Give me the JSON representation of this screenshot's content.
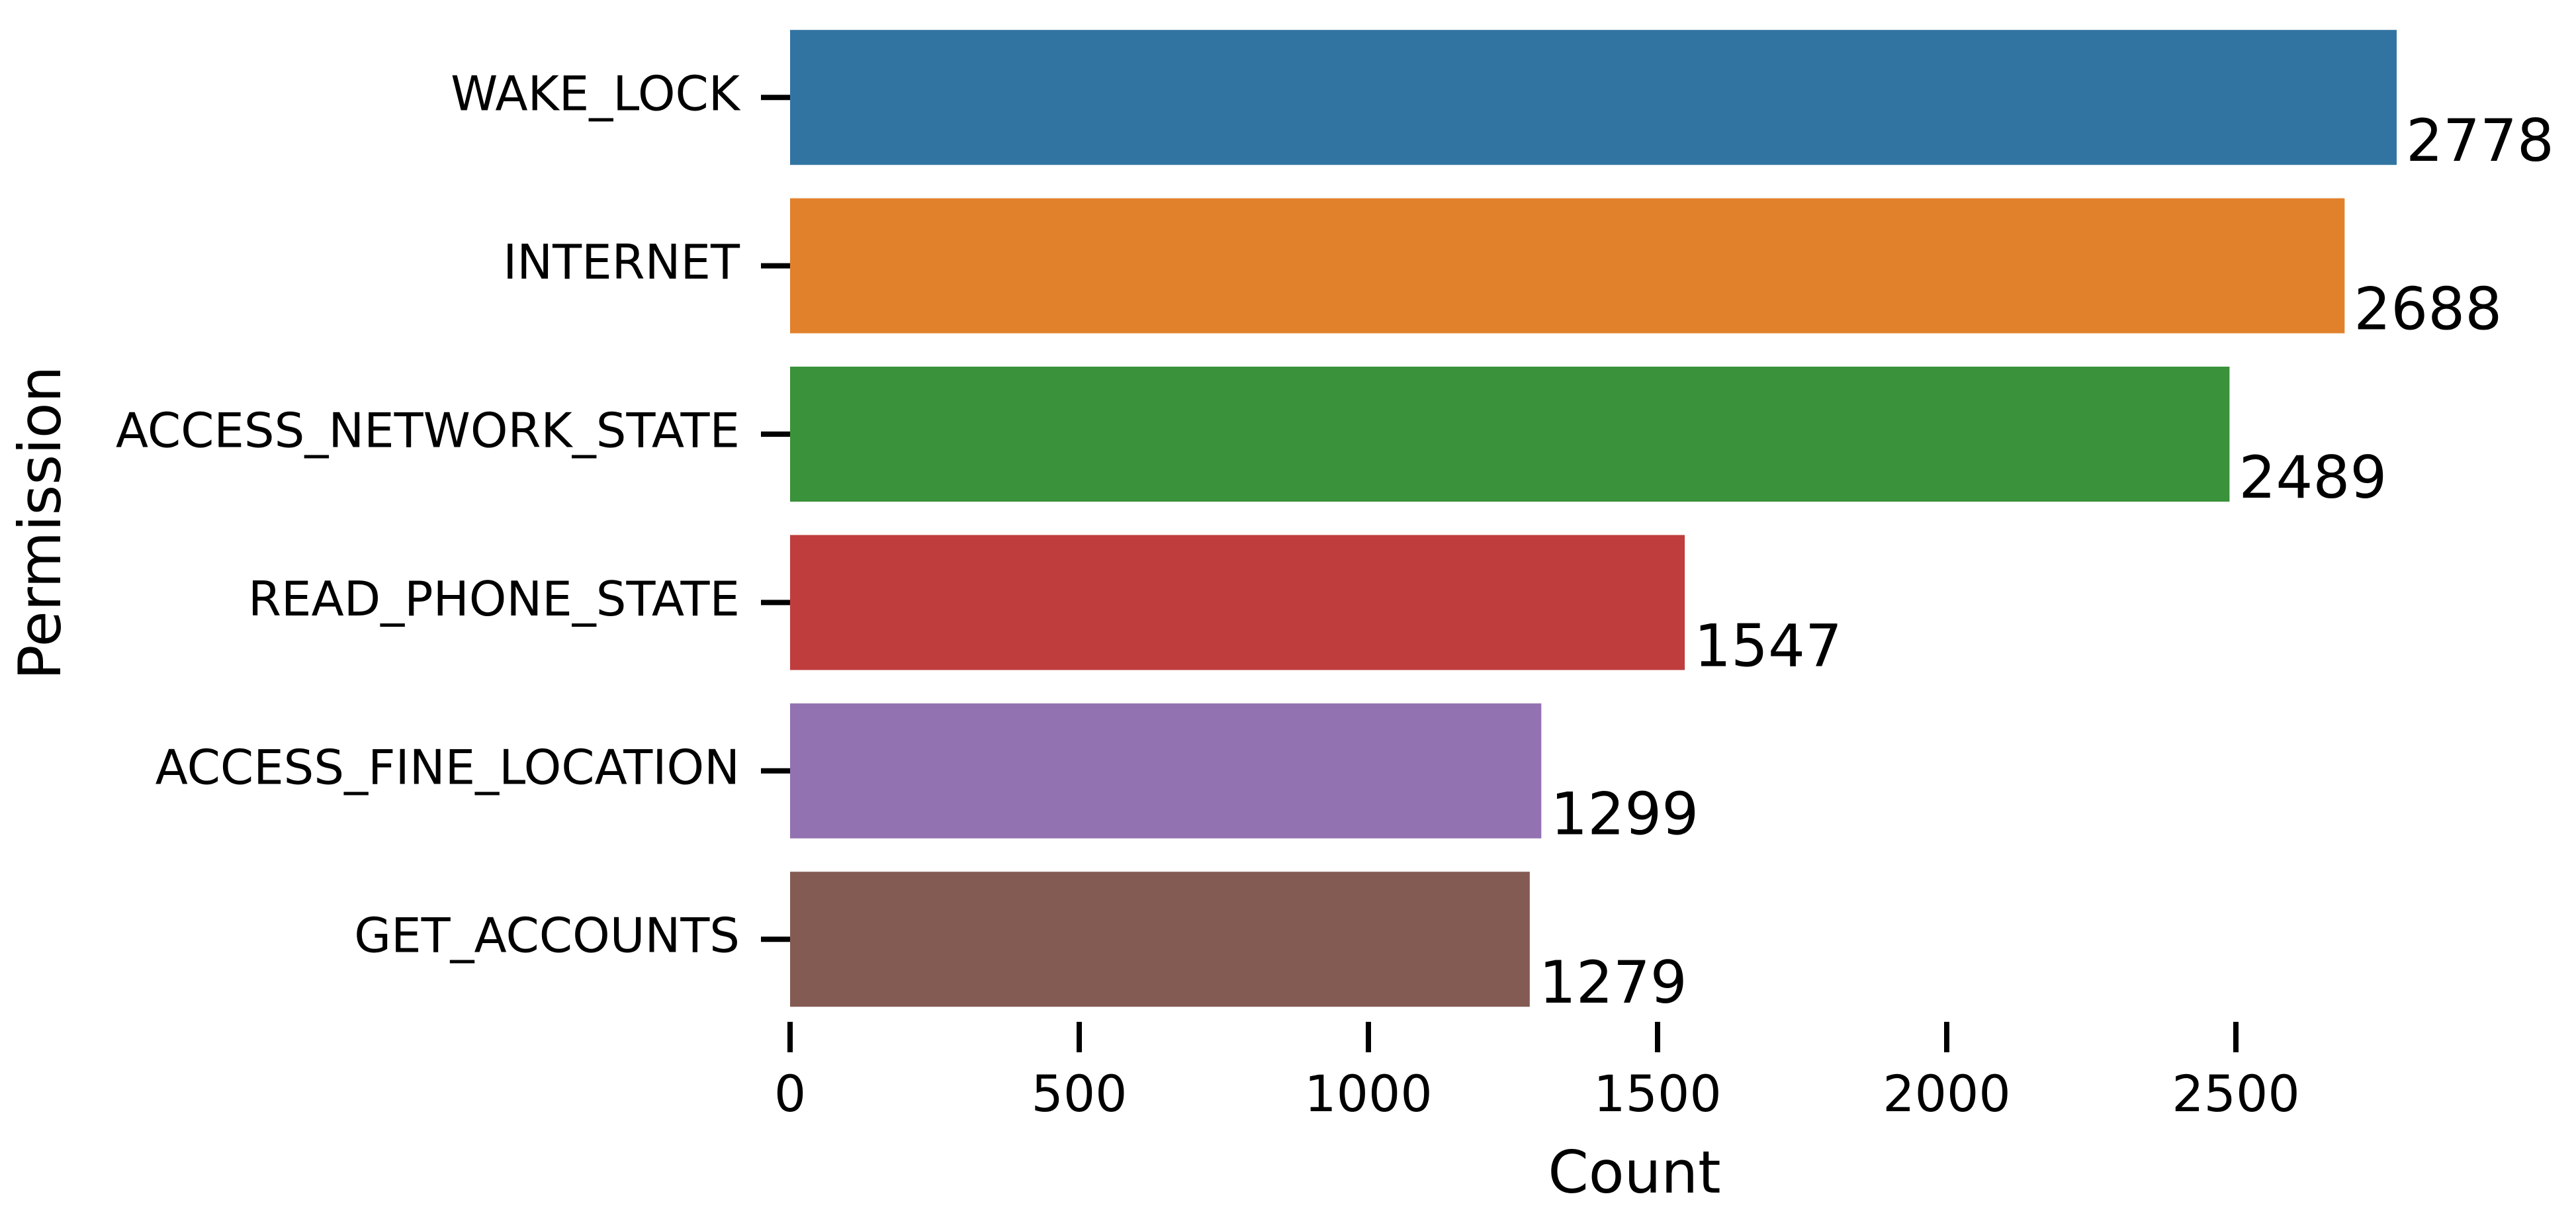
{
  "chart_data": {
    "type": "hbar",
    "categories": [
      "WAKE_LOCK",
      "INTERNET",
      "ACCESS_NETWORK_STATE",
      "READ_PHONE_STATE",
      "ACCESS_FINE_LOCATION",
      "GET_ACCOUNTS"
    ],
    "values": [
      2778,
      2688,
      2489,
      1547,
      1299,
      1279
    ],
    "colors": [
      "#3274a1",
      "#e1812c",
      "#3a923a",
      "#c03d3e",
      "#9372b2",
      "#845b53"
    ],
    "xlabel": "Count",
    "ylabel": "Permission",
    "xlim": [
      0,
      2800
    ],
    "xticks": [
      0,
      500,
      1000,
      1500,
      2000,
      2500
    ]
  }
}
